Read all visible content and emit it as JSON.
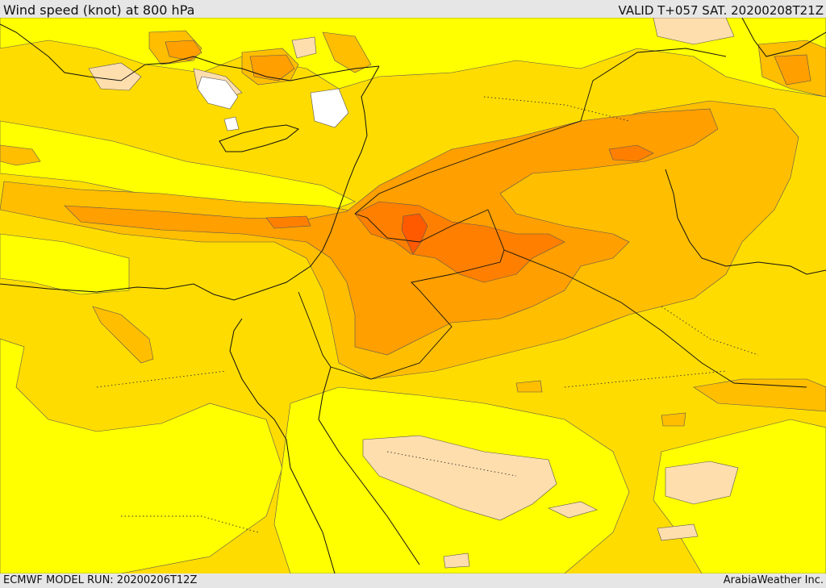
{
  "header": {
    "title": "Wind speed (knot) at 800 hPa",
    "valid": "VALID T+057 SAT. 20200208T21Z"
  },
  "footer": {
    "model_run": "ECMWF MODEL RUN: 20200206T12Z",
    "credit": "ArabiaWeather Inc."
  },
  "palette": {
    "lt5": "#ffffff",
    "5-10": "#ffdead",
    "10-15": "#ffff00",
    "15-20": "#ffdc00",
    "20-25": "#ffbe00",
    "25-30": "#ff9f00",
    "30-35": "#ff8000",
    "gt35": "#ff5a00"
  }
}
